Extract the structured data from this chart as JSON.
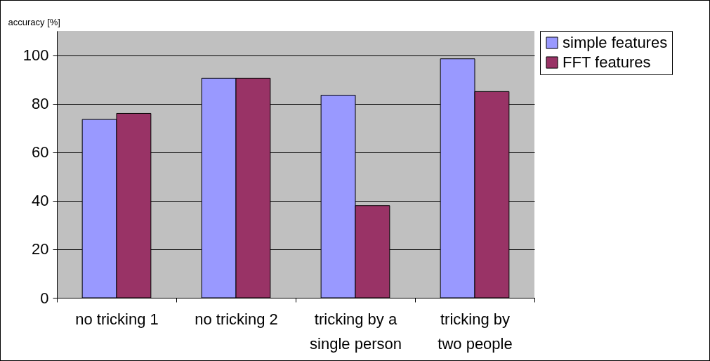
{
  "chart_data": {
    "type": "bar",
    "ylabel": "accuracy [%]",
    "categories": [
      "no tricking 1",
      "no tricking 2",
      "tricking by a single person",
      "tricking by two people"
    ],
    "series": [
      {
        "name": "simple features",
        "color": "#9999ff",
        "values": [
          73.5,
          90.5,
          83.5,
          98.5
        ]
      },
      {
        "name": "FFT features",
        "color": "#993366",
        "values": [
          76,
          90.5,
          38,
          85
        ]
      }
    ],
    "ylim": [
      0,
      110
    ],
    "yticks": [
      0,
      20,
      40,
      60,
      80,
      100
    ],
    "grid": "y",
    "legend": "right"
  }
}
